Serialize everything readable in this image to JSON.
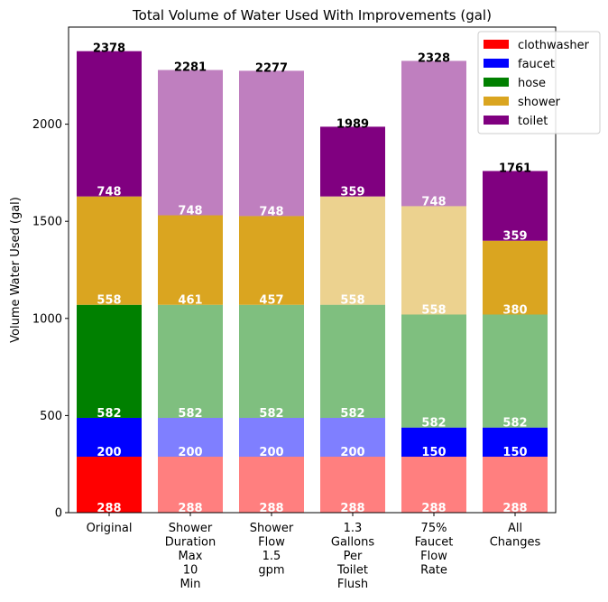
{
  "chart_data": {
    "type": "bar",
    "stacked": true,
    "title": "Total Volume of Water Used With Improvements (gal)",
    "xlabel": "",
    "ylabel": "Volume Water Used (gal)",
    "ylim": [
      0,
      2500
    ],
    "yticks": [
      0,
      500,
      1000,
      1500,
      2000
    ],
    "grid": false,
    "legend_position": "top-right",
    "categories": [
      [
        "Original"
      ],
      [
        "Shower",
        "Duration",
        "Max",
        "10",
        "Min"
      ],
      [
        "Shower",
        "Flow",
        "1.5",
        "gpm"
      ],
      [
        "1.3",
        "Gallons",
        "Per",
        "Toilet",
        "Flush"
      ],
      [
        "75%",
        "Faucet",
        "Flow",
        "Rate"
      ],
      [
        "All",
        "Changes"
      ]
    ],
    "series": [
      {
        "name": "clothwasher",
        "color": "#ff0000",
        "values": [
          288,
          288,
          288,
          288,
          288,
          288
        ],
        "labels": [
          "288",
          "288",
          "288",
          "288",
          "288",
          "288"
        ],
        "highlight": [
          true,
          false,
          false,
          false,
          false,
          false
        ]
      },
      {
        "name": "faucet",
        "color": "#0000ff",
        "values": [
          200,
          200,
          200,
          200,
          150,
          150
        ],
        "labels": [
          "200",
          "200",
          "200",
          "200",
          "150",
          "150"
        ],
        "highlight": [
          true,
          false,
          false,
          false,
          true,
          true
        ]
      },
      {
        "name": "hose",
        "color": "#008000",
        "values": [
          582,
          582,
          582,
          582,
          582,
          582
        ],
        "labels": [
          "582",
          "582",
          "582",
          "582",
          "582",
          "582"
        ],
        "highlight": [
          true,
          false,
          false,
          false,
          false,
          false
        ]
      },
      {
        "name": "shower",
        "color": "#daa520",
        "values": [
          558,
          461,
          457,
          558,
          558,
          380
        ],
        "labels": [
          "558",
          "461",
          "457",
          "558",
          "558",
          "380"
        ],
        "highlight": [
          true,
          true,
          true,
          false,
          false,
          true
        ]
      },
      {
        "name": "toilet",
        "color": "#800080",
        "values": [
          748,
          748,
          748,
          359,
          748,
          359
        ],
        "labels": [
          "748",
          "748",
          "748",
          "359",
          "748",
          "359"
        ],
        "highlight": [
          true,
          false,
          false,
          true,
          false,
          true
        ]
      }
    ],
    "totals": [
      "2378",
      "2281",
      "2277",
      "1989",
      "2328",
      "1761"
    ]
  }
}
